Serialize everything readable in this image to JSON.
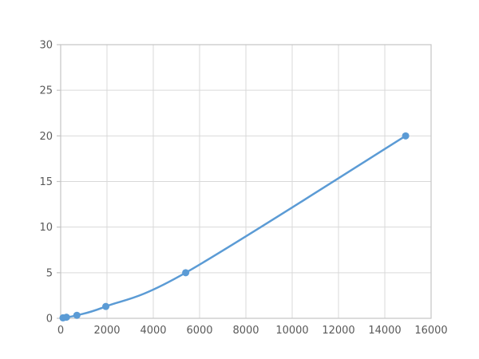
{
  "figure": {
    "background": "#ffffff"
  },
  "chart_data": {
    "type": "line",
    "title": "",
    "xlabel": "",
    "ylabel": "",
    "xlim": [
      0,
      16000
    ],
    "ylim": [
      0,
      30
    ],
    "xticks": [
      0,
      2000,
      4000,
      6000,
      8000,
      10000,
      12000,
      14000,
      16000
    ],
    "yticks": [
      0,
      5,
      10,
      15,
      20,
      25,
      30
    ],
    "grid": true,
    "legend": false,
    "series": [
      {
        "x": [
          100,
          250,
          700,
          1950,
          5400,
          14900
        ],
        "y": [
          0.05,
          0.12,
          0.33,
          1.3,
          5.0,
          20.0
        ],
        "color": "#5B9BD5",
        "marker": "circle",
        "marker_radius": 4.5,
        "line_width": 2.5
      }
    ],
    "grid_color": "#D9D9D9",
    "spine_color": "#C4C4C4",
    "tick_mark_color": "#C4C4C4",
    "tick_label_color": "#595959",
    "tick_font_size": 13
  }
}
